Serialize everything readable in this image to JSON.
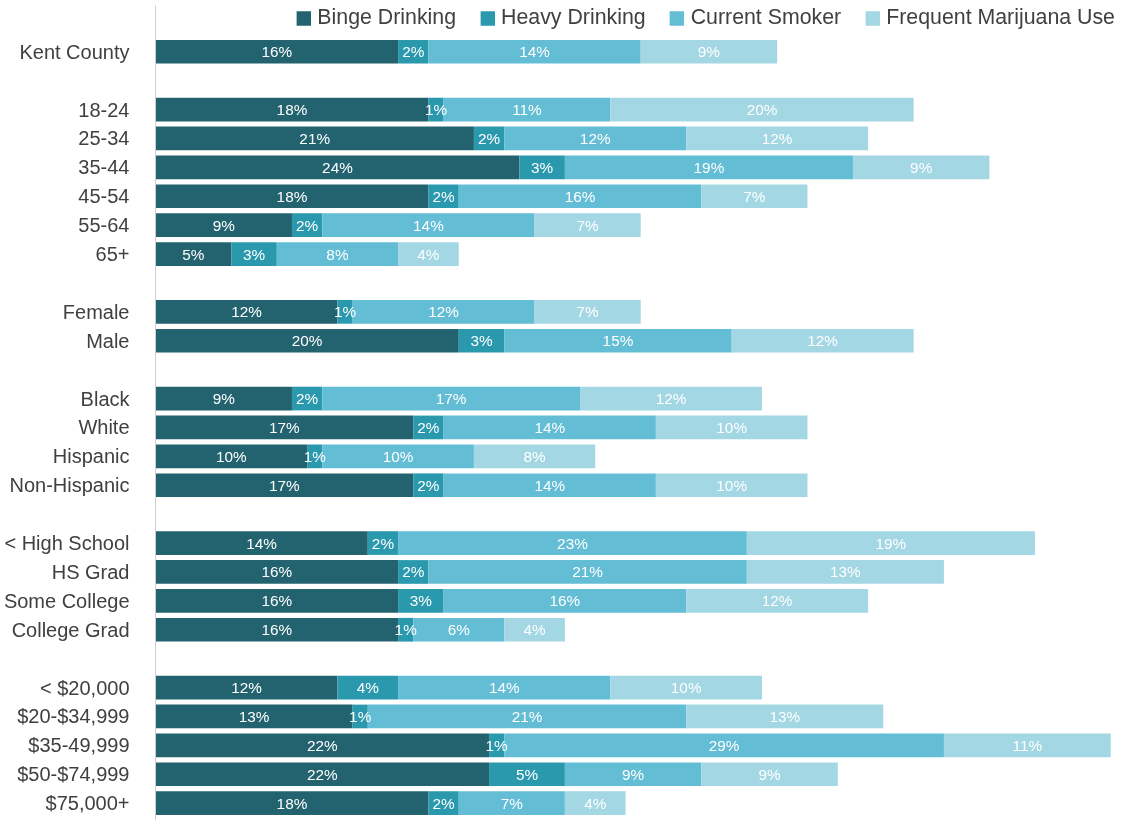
{
  "chart_data": {
    "type": "bar",
    "orientation": "horizontal",
    "stacked": true,
    "legend": "top",
    "grid": false,
    "categories": [
      "Kent County",
      null,
      "18-24",
      "25-34",
      "35-44",
      "45-54",
      "55-64",
      "65+",
      null,
      "Female",
      "Male",
      null,
      "Black",
      "White",
      "Hispanic",
      "Non-Hispanic",
      null,
      "< High School",
      "HS Grad",
      "Some College",
      "College Grad",
      null,
      "< $20,000",
      "$20-$34,999",
      "$35-49,999",
      "$50-$74,999",
      "$75,000+"
    ],
    "series": [
      {
        "name": "Binge Drinking",
        "color": "#23636f",
        "values": [
          16,
          null,
          18,
          21,
          24,
          18,
          9,
          5,
          null,
          12,
          20,
          null,
          9,
          17,
          10,
          17,
          null,
          14,
          16,
          16,
          16,
          null,
          12,
          13,
          22,
          22,
          18
        ],
        "value_labels": [
          "16%",
          null,
          "18%",
          "21%",
          "24%",
          "18%",
          "9%",
          "5%",
          null,
          "12%",
          "20%",
          null,
          "9%",
          "17%",
          "10%",
          "17%",
          null,
          "14%",
          "16%",
          "16%",
          "16%",
          null,
          "12%",
          "13%",
          "22%",
          "22%",
          "18%"
        ]
      },
      {
        "name": "Heavy Drinking",
        "color": "#2a98ad",
        "values": [
          2,
          null,
          1,
          2,
          3,
          2,
          2,
          3,
          null,
          1,
          3,
          null,
          2,
          2,
          1,
          2,
          null,
          2,
          2,
          3,
          1,
          null,
          4,
          1,
          1,
          5,
          2
        ],
        "value_labels": [
          "2%",
          null,
          "1%",
          "2%",
          "3%",
          "2%",
          "2%",
          "3%",
          null,
          "1%",
          "3%",
          null,
          "2%",
          "2%",
          "1%",
          "2%",
          null,
          "2%",
          "2%",
          "3%",
          "1%",
          null,
          "4%",
          "1%",
          "1%",
          "5%",
          "2%"
        ]
      },
      {
        "name": "Current Smoker",
        "color": "#62bdd5",
        "values": [
          14,
          null,
          11,
          12,
          19,
          16,
          14,
          8,
          null,
          12,
          15,
          null,
          17,
          14,
          10,
          14,
          null,
          23,
          21,
          16,
          6,
          null,
          14,
          21,
          29,
          9,
          7
        ],
        "value_labels": [
          "14%",
          null,
          "11%",
          "12%",
          "19%",
          "16%",
          "14%",
          "8%",
          null,
          "12%",
          "15%",
          null,
          "17%",
          "14%",
          "10%",
          "14%",
          null,
          "23%",
          "21%",
          "16%",
          "6%",
          null,
          "14%",
          "21%",
          "29%",
          "9%",
          "7%"
        ]
      },
      {
        "name": "Frequent Marijuana Use",
        "color": "#a3d7e4",
        "values": [
          9,
          null,
          20,
          12,
          9,
          7,
          7,
          4,
          null,
          7,
          12,
          null,
          12,
          10,
          8,
          10,
          null,
          19,
          13,
          12,
          4,
          null,
          10,
          13,
          11,
          9,
          4
        ],
        "value_labels": [
          "9%",
          null,
          "20%",
          "12%",
          "9%",
          "7%",
          "7%",
          "4%",
          null,
          "7%",
          "12%",
          null,
          "12%",
          "10%",
          "8%",
          "10%",
          null,
          "19%",
          "13%",
          "12%",
          "4%",
          null,
          "10%",
          "13%",
          "11%",
          "9%",
          "4%"
        ]
      }
    ]
  }
}
